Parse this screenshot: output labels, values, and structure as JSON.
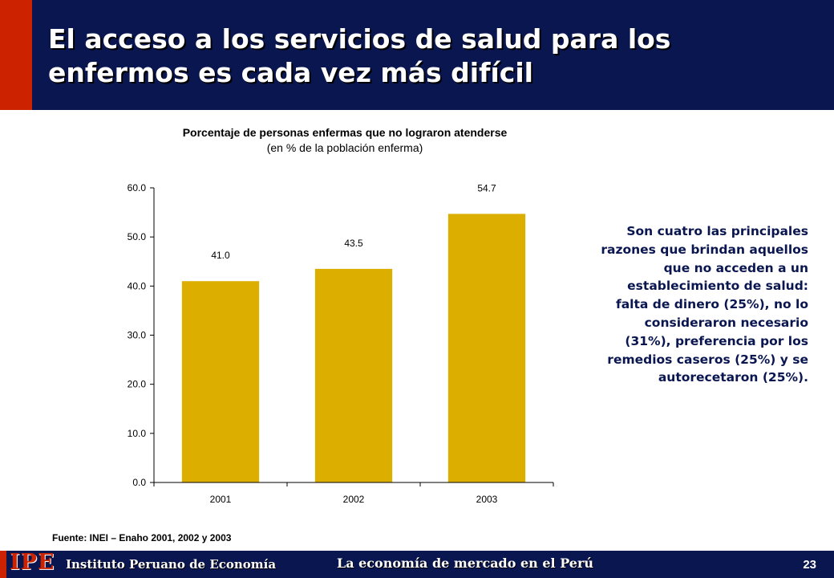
{
  "slide": {
    "title": "El acceso a los servicios de salud para los enfermos es cada vez más difícil",
    "side_text": "Son cuatro las principales razones que brindan aquellos que no acceden a un establecimiento de salud: falta de dinero (25%), no lo consideraron necesario (31%), preferencia por los remedios caseros (25%) y se autorecetaron (25%).",
    "source": "Fuente: INEI – Enaho 2001, 2002 y 2003",
    "colors": {
      "header": "#0a1650",
      "accent": "#cc2200",
      "bar": "#dcae00",
      "side_text": "#0a1650"
    }
  },
  "footer": {
    "logo": "IPE",
    "institute": "Instituto Peruano de Economía",
    "tagline": "La economía de mercado en el Perú",
    "page_number": "23"
  },
  "chart_data": {
    "type": "bar",
    "title": "Porcentaje de personas enfermas que no lograron atenderse",
    "subtitle": "(en % de la población enferma)",
    "categories": [
      "2001",
      "2002",
      "2003"
    ],
    "values": [
      41.0,
      43.5,
      54.7
    ],
    "value_labels": [
      "41.0",
      "43.5",
      "54.7"
    ],
    "ylim": [
      0,
      60
    ],
    "yticks": [
      "0.0",
      "10.0",
      "20.0",
      "30.0",
      "40.0",
      "50.0",
      "60.0"
    ],
    "grid": false,
    "bar_color": "#dcae00"
  }
}
